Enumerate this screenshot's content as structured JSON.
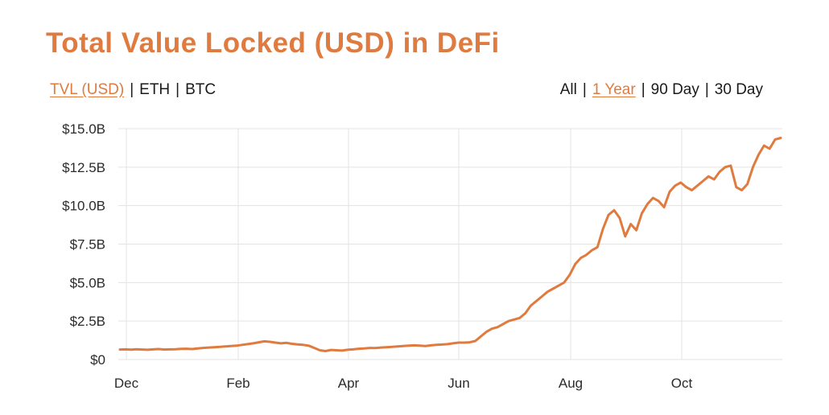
{
  "colors": {
    "accent": "#e07b3f",
    "line": "#e07b3f",
    "grid": "#e3e3e3",
    "text": "#1a1a1a"
  },
  "metric_toggles": [
    {
      "label": "TVL (USD)",
      "active": true
    },
    {
      "label": "ETH",
      "active": false
    },
    {
      "label": "BTC",
      "active": false
    }
  ],
  "range_toggles": [
    {
      "label": "All",
      "active": false
    },
    {
      "label": "1 Year",
      "active": true
    },
    {
      "label": "90 Day",
      "active": false
    },
    {
      "label": "30 Day",
      "active": false
    }
  ],
  "separator": "|",
  "chart_data": {
    "type": "line",
    "title": "Total Value Locked (USD) in DeFi",
    "xlabel": "",
    "ylabel": "",
    "grid": true,
    "legend": "none",
    "ylim": [
      0,
      15
    ],
    "y_ticks": [
      {
        "value": 0,
        "label": "$0"
      },
      {
        "value": 2.5,
        "label": "$2.5B"
      },
      {
        "value": 5,
        "label": "$5.0B"
      },
      {
        "value": 7.5,
        "label": "$7.5B"
      },
      {
        "value": 10,
        "label": "$10.0B"
      },
      {
        "value": 12.5,
        "label": "$12.5B"
      },
      {
        "value": 15,
        "label": "$15.0B"
      }
    ],
    "x_ticks": [
      "Dec",
      "Feb",
      "Apr",
      "Jun",
      "Aug",
      "Oct"
    ],
    "series": [
      {
        "values": [
          0.65,
          0.66,
          0.64,
          0.67,
          0.65,
          0.63,
          0.66,
          0.68,
          0.65,
          0.66,
          0.67,
          0.69,
          0.7,
          0.68,
          0.72,
          0.75,
          0.78,
          0.8,
          0.82,
          0.85,
          0.88,
          0.9,
          0.95,
          1.0,
          1.05,
          1.12,
          1.18,
          1.15,
          1.1,
          1.05,
          1.08,
          1.02,
          0.98,
          0.95,
          0.9,
          0.75,
          0.6,
          0.55,
          0.62,
          0.6,
          0.58,
          0.63,
          0.66,
          0.7,
          0.72,
          0.75,
          0.74,
          0.78,
          0.8,
          0.82,
          0.85,
          0.88,
          0.9,
          0.92,
          0.9,
          0.88,
          0.92,
          0.95,
          0.97,
          1.0,
          1.05,
          1.1,
          1.1,
          1.12,
          1.2,
          1.5,
          1.8,
          2.0,
          2.1,
          2.3,
          2.5,
          2.6,
          2.7,
          3.0,
          3.5,
          3.8,
          4.1,
          4.4,
          4.6,
          4.8,
          5.0,
          5.5,
          6.2,
          6.6,
          6.8,
          7.1,
          7.3,
          8.5,
          9.4,
          9.7,
          9.2,
          8.0,
          8.8,
          8.4,
          9.5,
          10.1,
          10.5,
          10.3,
          9.9,
          10.9,
          11.3,
          11.5,
          11.2,
          11.0,
          11.3,
          11.6,
          11.9,
          11.7,
          12.2,
          12.5,
          12.6,
          11.2,
          11.0,
          11.4,
          12.5,
          13.3,
          13.9,
          13.7,
          14.3,
          14.4
        ]
      }
    ]
  }
}
